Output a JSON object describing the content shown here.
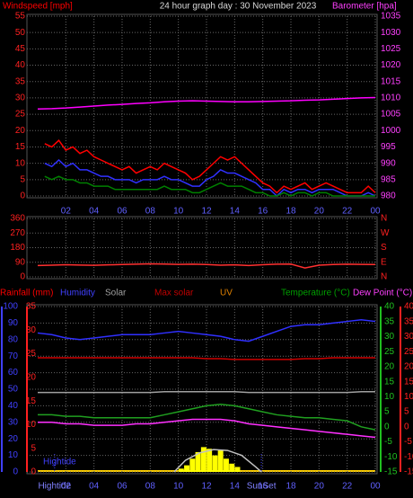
{
  "chart_data": [
    {
      "type": "line",
      "title": "24 hour graph day : 30 November 2023",
      "ylabel": "Windspeed [mph]",
      "y2label": "Barometer [hpa]",
      "xlim": [
        0,
        24
      ],
      "xticks": [
        {
          "value": 2,
          "label": "02"
        },
        {
          "value": 4,
          "label": "04"
        },
        {
          "value": 6,
          "label": "06"
        },
        {
          "value": 8,
          "label": "08"
        },
        10,
        12,
        14,
        16,
        18,
        20,
        22,
        {
          "value": 24,
          "label": "00"
        }
      ],
      "ylim": [
        0,
        55
      ],
      "yticks": [
        0,
        5,
        10,
        15,
        20,
        25,
        30,
        35,
        40,
        45,
        50,
        55
      ],
      "y2lim": [
        980,
        1035
      ],
      "y2ticks": [
        980,
        985,
        990,
        995,
        1000,
        1005,
        1010,
        1015,
        1020,
        1025,
        1030,
        1035
      ],
      "grid": true,
      "x": [
        0.5,
        1,
        1.5,
        2,
        2.5,
        3,
        3.5,
        4,
        4.5,
        5,
        5.5,
        6,
        6.5,
        7,
        7.5,
        8,
        8.5,
        9,
        9.5,
        10,
        10.5,
        11,
        11.5,
        12,
        12.5,
        13,
        13.5,
        14,
        14.5,
        15,
        15.5,
        16,
        16.5,
        17,
        17.5,
        18,
        18.5,
        19,
        19.5,
        20,
        20.5,
        21,
        21.5,
        22,
        22.5,
        23,
        23.5,
        24
      ],
      "series": [
        {
          "color": "#ff0000",
          "values": [
            16,
            15,
            17,
            14,
            15,
            13,
            14,
            12,
            11,
            10,
            9,
            8,
            9,
            7,
            8,
            9,
            8,
            10,
            9,
            8,
            7,
            5,
            6,
            8,
            10,
            12,
            11,
            12,
            10,
            8,
            6,
            4,
            3,
            1,
            3,
            2,
            3,
            4,
            2,
            3,
            4,
            3,
            2,
            1,
            1,
            1,
            3,
            1
          ]
        },
        {
          "color": "#3030ff",
          "values": [
            10,
            9,
            11,
            9,
            10,
            8,
            8,
            7,
            6,
            6,
            5,
            5,
            5,
            4,
            5,
            5,
            5,
            6,
            5,
            5,
            4,
            3,
            3,
            5,
            6,
            8,
            7,
            7,
            6,
            5,
            4,
            2,
            2,
            0,
            2,
            1,
            2,
            2,
            1,
            2,
            2,
            2,
            1,
            0,
            0,
            0,
            1,
            0
          ]
        },
        {
          "color": "#008000",
          "values": [
            6,
            5,
            6,
            5,
            5,
            4,
            4,
            3,
            3,
            3,
            2,
            2,
            2,
            2,
            2,
            2,
            2,
            3,
            2,
            2,
            2,
            1,
            1,
            2,
            3,
            4,
            3,
            3,
            3,
            2,
            1,
            1,
            0,
            0,
            1,
            0,
            1,
            1,
            0,
            1,
            1,
            0,
            0,
            0,
            0,
            0,
            0,
            0
          ]
        },
        {
          "color": "#ff00ff",
          "axis": "y2",
          "x": [
            0,
            1,
            2,
            3,
            4,
            5,
            6,
            7,
            8,
            9,
            10,
            11,
            12,
            13,
            14,
            15,
            16,
            17,
            18,
            19,
            20,
            21,
            22,
            23,
            24
          ],
          "values": [
            1006.6,
            1006.7,
            1006.9,
            1007.2,
            1007.5,
            1007.8,
            1008.0,
            1008.3,
            1008.5,
            1008.8,
            1009.0,
            1009.1,
            1009.0,
            1008.9,
            1008.8,
            1008.8,
            1008.9,
            1009.0,
            1009.1,
            1009.3,
            1009.4,
            1009.6,
            1009.8,
            1010.0,
            1010.1
          ]
        }
      ]
    },
    {
      "type": "line",
      "xlim": [
        0,
        24
      ],
      "xticks": [
        {
          "value": 2,
          "label": "02"
        },
        {
          "value": 4,
          "label": "04"
        },
        {
          "value": 6,
          "label": "06"
        },
        {
          "value": 8,
          "label": "08"
        },
        10,
        12,
        14,
        16,
        18,
        20,
        22,
        {
          "value": 24,
          "label": "00"
        }
      ],
      "ylim": [
        0,
        360
      ],
      "yticks": [
        0,
        90,
        180,
        270,
        360
      ],
      "y2lim": [
        0,
        360
      ],
      "y2ticks": [
        {
          "value": 360,
          "label": "N"
        },
        {
          "value": 270,
          "label": "W"
        },
        {
          "value": 180,
          "label": "S"
        },
        {
          "value": 90,
          "label": "E"
        },
        {
          "value": 0,
          "label": "N"
        }
      ],
      "grid": true,
      "x": [
        0,
        1,
        2,
        3,
        4,
        5,
        6,
        7,
        8,
        9,
        10,
        11,
        12,
        13,
        14,
        15,
        16,
        17,
        18,
        19,
        20,
        21,
        22,
        23,
        24
      ],
      "series": [
        {
          "color": "#ff3030",
          "values": [
            70,
            72,
            75,
            73,
            71,
            74,
            76,
            78,
            80,
            79,
            77,
            78,
            76,
            72,
            74,
            70,
            75,
            78,
            79,
            55,
            72,
            76,
            78,
            77,
            76
          ]
        }
      ]
    },
    {
      "type": "line",
      "xlim": [
        0,
        24
      ],
      "xticks": [
        {
          "value": 2,
          "label": "02"
        },
        {
          "value": 4,
          "label": "04"
        },
        {
          "value": 6,
          "label": "06"
        },
        {
          "value": 8,
          "label": "08"
        },
        10,
        12,
        14,
        16,
        18,
        20,
        22,
        {
          "value": 24,
          "label": "00"
        }
      ],
      "legend": [
        {
          "name": "Rainfall (mm)",
          "color": "#ff0000"
        },
        {
          "name": "Humidity",
          "color": "#4040ff"
        },
        {
          "name": "Solar",
          "color": "#a0a0a0"
        },
        {
          "name": "Max solar",
          "color": "#c00000"
        },
        {
          "name": "UV",
          "color": "#e08000"
        },
        {
          "name": "Temperature (°C)",
          "color": "#00a000"
        },
        {
          "name": "Dew Point (°C)",
          "color": "#ff40ff"
        }
      ],
      "ylim": [
        0,
        100
      ],
      "yticks": [
        0,
        10,
        20,
        30,
        40,
        50,
        60,
        70,
        80,
        90,
        100
      ],
      "y3lim": [
        0,
        35
      ],
      "y3ticks": [
        0,
        5,
        10,
        15,
        20,
        25,
        30,
        35
      ],
      "y2lim": [
        -15,
        40
      ],
      "y2ticks": [
        -15,
        -10,
        -5,
        0,
        5,
        10,
        15,
        20,
        25,
        30,
        35,
        40
      ],
      "y4lim": [
        -15,
        40
      ],
      "y4ticks": [
        -15,
        -10,
        -5,
        0,
        5,
        10,
        15,
        20,
        25,
        30,
        35,
        40
      ],
      "grid": true,
      "x": [
        0,
        1,
        2,
        3,
        4,
        5,
        6,
        7,
        8,
        9,
        10,
        11,
        12,
        13,
        14,
        15,
        16,
        17,
        18,
        19,
        20,
        21,
        22,
        23,
        24
      ],
      "series": [
        {
          "color": "#3030ff",
          "values": [
            84,
            83,
            81,
            80,
            81,
            82,
            83,
            83,
            83,
            84,
            85,
            84,
            83,
            82,
            80,
            79,
            82,
            85,
            88,
            89,
            89,
            90,
            91,
            92,
            91
          ]
        },
        {
          "color": "#d00000",
          "values": [
            69,
            69,
            69,
            69,
            69,
            69,
            69,
            69,
            69,
            69,
            69,
            69,
            68.5,
            68.5,
            68,
            68,
            68,
            68,
            68,
            68.5,
            68.5,
            69,
            69,
            69,
            69
          ]
        },
        {
          "color": "#a0a0a0",
          "values": [
            48,
            48,
            48,
            48,
            48,
            48,
            48,
            48,
            48,
            48.5,
            48.5,
            48.5,
            48.5,
            48.5,
            48.5,
            48,
            48,
            48,
            48,
            48,
            48,
            48,
            48,
            48.5,
            48.5
          ]
        },
        {
          "color": "#ffff00",
          "style": "bar",
          "x": [
            10.2,
            10.6,
            11,
            11.4,
            11.8,
            12.2,
            12.6,
            13,
            13.4,
            13.8,
            14.2
          ],
          "values": [
            2,
            4,
            8,
            12,
            15,
            14,
            10,
            13,
            8,
            5,
            3
          ]
        },
        {
          "color": "#c0c0c0",
          "x": [
            9.7,
            10.5,
            11.5,
            12.5,
            13.5,
            14.5,
            15.5,
            15.9
          ],
          "values": [
            0,
            7,
            11.5,
            13.5,
            13,
            10,
            3,
            0
          ]
        },
        {
          "color": "#20a020",
          "axis": "y2",
          "values": [
            4,
            4,
            3.5,
            3.5,
            3,
            3,
            3,
            3,
            3,
            4,
            5,
            6,
            7,
            7.5,
            7,
            6,
            5,
            4,
            3.5,
            3,
            3,
            2.5,
            2,
            0,
            -1
          ]
        },
        {
          "color": "#ff30ff",
          "axis": "y2",
          "values": [
            1.5,
            1.5,
            1,
            1,
            0.5,
            0.5,
            0.5,
            1,
            1,
            1.5,
            2,
            2.5,
            2.5,
            2.5,
            2,
            1,
            0.5,
            0,
            -0.5,
            -1,
            -1.5,
            -2,
            -2.5,
            -3,
            -3.5
          ]
        }
      ],
      "note": "Hightide",
      "annotations": [
        {
          "label": "Hightide",
          "x": 1.2
        },
        {
          "label": "SunSet",
          "x": 15.9
        }
      ]
    }
  ]
}
